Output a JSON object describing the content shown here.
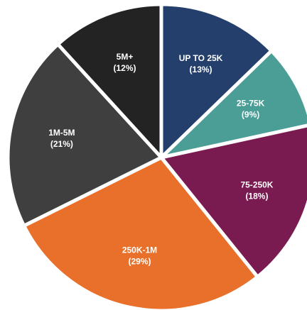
{
  "chart_data": {
    "type": "pie",
    "categories": [
      "UP TO 25K",
      "25-75K",
      "75-250K",
      "250K-1M",
      "1M-5M",
      "5M+"
    ],
    "values": [
      13,
      9,
      18,
      29,
      21,
      12
    ],
    "value_labels": [
      "(13%)",
      "(9%)",
      "(18%)",
      "(29%)",
      "(21%)",
      "(12%)"
    ],
    "colors": [
      "#243f6b",
      "#4a9e96",
      "#791b50",
      "#e8702a",
      "#3f3f3f",
      "#232323"
    ]
  }
}
